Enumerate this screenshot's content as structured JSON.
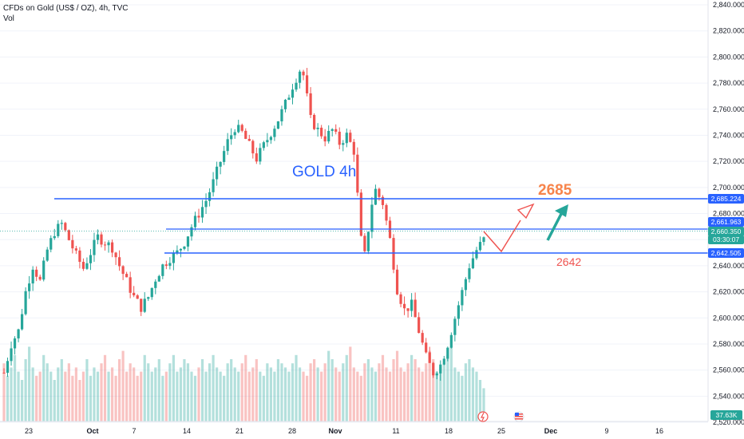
{
  "header": {
    "title": "CFDs on Gold (US$ / OZ), 4h, TVC",
    "sub": "Vol"
  },
  "colors": {
    "up": "#26a69a",
    "down": "#ef5350",
    "line": "#2962ff",
    "target": "#f7844b",
    "label": "#ef5350",
    "green": "#26a69a"
  },
  "annotations": {
    "title": "GOLD  4h",
    "target": "2685",
    "support": "2642"
  },
  "price_tags": {
    "resistance": "2,685.224",
    "level2": "2,661.963",
    "last": "2,660.350",
    "countdown": "03:30:07",
    "support": "2,642.505",
    "volume": "37.63K"
  },
  "chart_data": {
    "type": "candlestick",
    "title": "CFDs on Gold (US$ / OZ), 4h, TVC",
    "ylim": [
      2510,
      2845
    ],
    "yticks": [
      2520,
      2540,
      2560,
      2580,
      2600,
      2620,
      2640,
      2660,
      2680,
      2700,
      2720,
      2740,
      2760,
      2780,
      2800,
      2820,
      2840
    ],
    "ytick_labels": [
      "2,520.000",
      "2,540.000",
      "2,560.000",
      "2,580.000",
      "2,600.000",
      "2,620.000",
      "2,640.000",
      "2,660.000",
      "2,680.000",
      "2,700.000",
      "2,720.000",
      "2,740.000",
      "2,760.000",
      "2,780.000",
      "2,800.000",
      "2,820.000",
      "2,840.000"
    ],
    "xticks": [
      "23",
      "Oct",
      "7",
      "14",
      "21",
      "28",
      "Nov",
      "11",
      "18",
      "25",
      "Dec",
      "9",
      "16"
    ],
    "levels": [
      2685.224,
      2661.963,
      2642.505
    ],
    "last_price": 2660.35,
    "price_path": [
      [
        0,
        2558
      ],
      [
        2,
        2580
      ],
      [
        4,
        2590
      ],
      [
        6,
        2620
      ],
      [
        8,
        2640
      ],
      [
        10,
        2628
      ],
      [
        12,
        2652
      ],
      [
        14,
        2666
      ],
      [
        16,
        2672
      ],
      [
        18,
        2660
      ],
      [
        20,
        2648
      ],
      [
        22,
        2638
      ],
      [
        24,
        2650
      ],
      [
        26,
        2662
      ],
      [
        28,
        2658
      ],
      [
        30,
        2654
      ],
      [
        32,
        2640
      ],
      [
        34,
        2628
      ],
      [
        36,
        2616
      ],
      [
        38,
        2608
      ],
      [
        40,
        2616
      ],
      [
        42,
        2630
      ],
      [
        44,
        2640
      ],
      [
        46,
        2646
      ],
      [
        48,
        2650
      ],
      [
        50,
        2658
      ],
      [
        52,
        2670
      ],
      [
        54,
        2680
      ],
      [
        56,
        2690
      ],
      [
        58,
        2704
      ],
      [
        60,
        2720
      ],
      [
        62,
        2735
      ],
      [
        64,
        2746
      ],
      [
        66,
        2742
      ],
      [
        68,
        2732
      ],
      [
        70,
        2722
      ],
      [
        72,
        2732
      ],
      [
        74,
        2742
      ],
      [
        76,
        2752
      ],
      [
        78,
        2764
      ],
      [
        80,
        2778
      ],
      [
        82,
        2790
      ],
      [
        83,
        2786
      ],
      [
        85,
        2752
      ],
      [
        87,
        2744
      ],
      [
        89,
        2738
      ],
      [
        91,
        2744
      ],
      [
        93,
        2734
      ],
      [
        95,
        2740
      ],
      [
        97,
        2728
      ],
      [
        99,
        2660
      ],
      [
        100,
        2648
      ],
      [
        102,
        2688
      ],
      [
        103,
        2698
      ],
      [
        105,
        2688
      ],
      [
        107,
        2660
      ],
      [
        109,
        2622
      ],
      [
        111,
        2606
      ],
      [
        113,
        2610
      ],
      [
        115,
        2590
      ],
      [
        117,
        2570
      ],
      [
        119,
        2558
      ],
      [
        121,
        2564
      ],
      [
        123,
        2580
      ],
      [
        125,
        2600
      ],
      [
        127,
        2620
      ],
      [
        129,
        2640
      ],
      [
        131,
        2652
      ],
      [
        133,
        2660
      ]
    ],
    "volume": [
      14,
      11,
      13,
      16,
      12,
      10,
      15,
      18,
      13,
      11,
      12,
      16,
      14,
      12,
      10,
      13,
      15,
      12,
      14,
      11,
      13,
      10,
      12,
      15,
      11,
      13,
      12,
      14,
      16,
      12,
      13,
      11,
      15,
      17,
      12,
      14,
      13,
      11,
      12,
      16,
      14,
      12,
      13,
      15,
      11,
      12,
      14,
      16,
      12,
      13,
      15,
      14,
      12,
      11,
      13,
      15,
      12,
      14,
      16,
      13,
      12,
      11,
      14,
      15,
      13,
      12,
      14,
      16,
      12,
      13,
      15,
      12,
      11,
      14,
      13,
      12,
      15,
      14,
      13,
      12,
      14,
      16,
      13,
      12,
      11,
      14,
      15,
      13,
      12,
      14,
      17,
      15,
      13,
      12,
      14,
      16,
      18,
      13,
      12,
      11,
      14,
      15,
      13,
      12,
      14,
      16,
      13,
      12,
      15,
      17,
      13,
      12,
      14,
      16,
      15,
      13,
      12,
      14,
      17,
      15,
      12,
      13,
      14,
      16,
      18,
      13,
      12,
      11,
      14,
      15,
      13,
      12,
      10,
      8
    ]
  }
}
